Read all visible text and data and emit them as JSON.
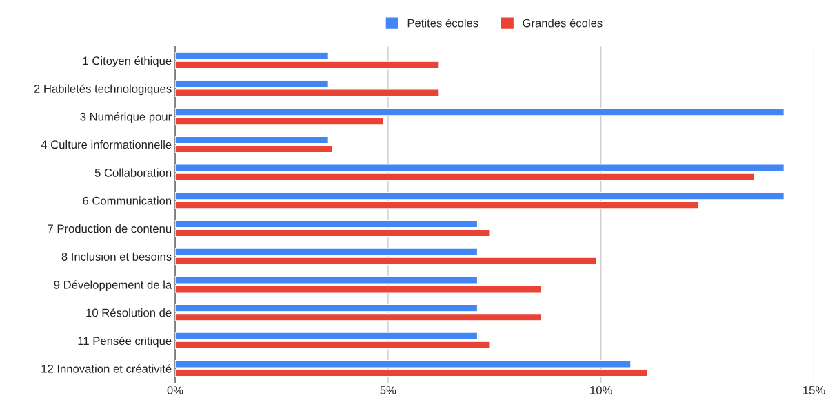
{
  "chart_data": {
    "type": "bar",
    "orientation": "horizontal",
    "categories": [
      "1 Citoyen éthique",
      "2 Habiletés technologiques",
      "3 Numérique pour",
      "4 Culture informationnelle",
      "5 Collaboration",
      "6 Communication",
      "7 Production de contenu",
      "8 Inclusion et besoins",
      "9 Développement de la",
      "10 Résolution de",
      "11 Pensée critique",
      "12 Innovation et créativité"
    ],
    "series": [
      {
        "name": "Petites écoles",
        "color": "#4285f4",
        "values": [
          3.6,
          3.6,
          14.3,
          3.6,
          14.3,
          14.3,
          7.1,
          7.1,
          7.1,
          7.1,
          7.1,
          10.7
        ]
      },
      {
        "name": "Grandes écoles",
        "color": "#ea4335",
        "values": [
          6.2,
          6.2,
          4.9,
          3.7,
          13.6,
          12.3,
          7.4,
          9.9,
          8.6,
          8.6,
          7.4,
          11.1
        ]
      }
    ],
    "xlim": [
      0,
      15
    ],
    "xticks": [
      {
        "value": 0,
        "label": "0%"
      },
      {
        "value": 5,
        "label": "5%"
      },
      {
        "value": 10,
        "label": "10%"
      },
      {
        "value": 15,
        "label": "15%"
      }
    ],
    "grid": "x",
    "legend": "top"
  }
}
